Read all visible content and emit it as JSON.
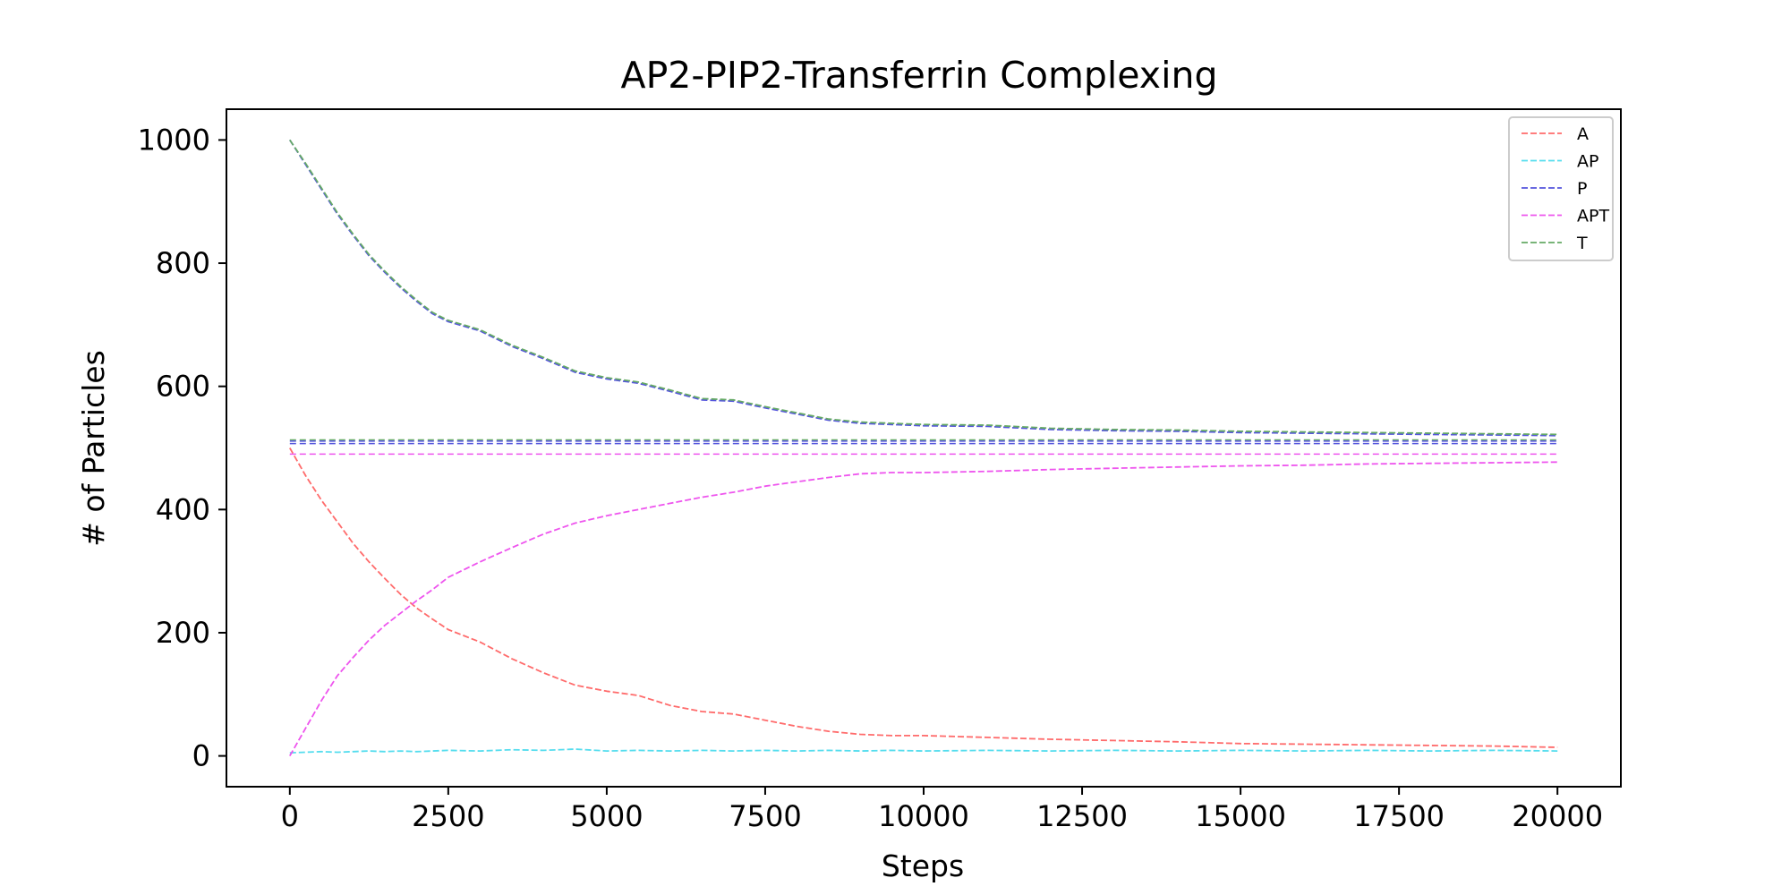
{
  "chart_data": {
    "type": "line",
    "title": "AP2-PIP2-Transferrin Complexing",
    "xlabel": "Steps",
    "ylabel": "# of Particles",
    "xlim": [
      -1000,
      21000
    ],
    "ylim": [
      -50,
      1050
    ],
    "xticks": [
      0,
      2500,
      5000,
      7500,
      10000,
      12500,
      15000,
      17500,
      20000
    ],
    "yticks": [
      0,
      200,
      400,
      600,
      800,
      1000
    ],
    "grid": false,
    "legend_position": "top-right",
    "x": [
      0,
      250,
      500,
      750,
      1000,
      1250,
      1500,
      1750,
      2000,
      2250,
      2500,
      3000,
      3500,
      4000,
      4500,
      5000,
      5500,
      6000,
      6500,
      7000,
      7500,
      8000,
      8500,
      9000,
      9500,
      10000,
      11000,
      12000,
      13000,
      14000,
      15000,
      16000,
      17000,
      18000,
      19000,
      20000
    ],
    "series": [
      {
        "name": "A",
        "color": "#ff6b6b",
        "values": [
          500,
          455,
          415,
          380,
          345,
          315,
          288,
          262,
          240,
          222,
          205,
          185,
          158,
          135,
          115,
          105,
          98,
          82,
          72,
          68,
          58,
          48,
          40,
          35,
          33,
          33,
          30,
          27,
          25,
          23,
          20,
          19,
          18,
          17,
          16,
          14
        ]
      },
      {
        "name": "AP",
        "color": "#55ddee",
        "values": [
          5,
          6,
          7,
          6,
          7,
          8,
          7,
          8,
          7,
          8,
          9,
          8,
          10,
          9,
          11,
          8,
          9,
          8,
          9,
          8,
          9,
          8,
          9,
          8,
          9,
          8,
          9,
          8,
          9,
          8,
          9,
          8,
          9,
          8,
          9,
          8
        ]
      },
      {
        "name": "P",
        "color": "#5555dd",
        "values": [
          1000,
          960,
          920,
          880,
          845,
          812,
          785,
          760,
          738,
          718,
          705,
          690,
          665,
          645,
          623,
          612,
          605,
          592,
          578,
          576,
          565,
          555,
          545,
          540,
          538,
          536,
          535,
          530,
          528,
          527,
          525,
          524,
          523,
          522,
          521,
          520
        ]
      },
      {
        "name": "APT",
        "color": "#ee55ee",
        "values": [
          0,
          45,
          90,
          130,
          160,
          188,
          212,
          232,
          252,
          270,
          290,
          315,
          338,
          360,
          378,
          390,
          400,
          410,
          420,
          428,
          438,
          445,
          452,
          458,
          460,
          460,
          462,
          465,
          467,
          469,
          471,
          472,
          474,
          475,
          476,
          477
        ]
      },
      {
        "name": "T",
        "color": "#66aa66",
        "values": [
          1000,
          962,
          922,
          882,
          847,
          814,
          787,
          762,
          740,
          720,
          707,
          692,
          667,
          647,
          625,
          614,
          607,
          594,
          580,
          578,
          567,
          557,
          547,
          542,
          540,
          538,
          537,
          532,
          530,
          529,
          527,
          526,
          525,
          524,
          523,
          522
        ]
      }
    ],
    "reference_lines": [
      {
        "y": 513,
        "color": "#66aa66"
      },
      {
        "y": 511,
        "color": "#5555dd"
      },
      {
        "y": 507,
        "color": "#5555dd"
      },
      {
        "y": 490,
        "color": "#ee55ee"
      }
    ]
  }
}
